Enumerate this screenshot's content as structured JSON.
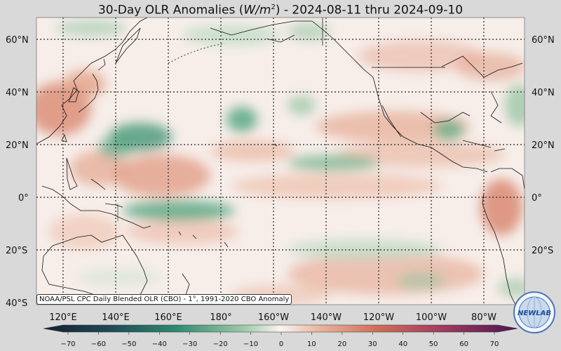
{
  "title": {
    "prefix": "30-Day OLR Anomalies (",
    "unit_base": "W/m",
    "unit_exp": "2",
    "suffix": ") - 2024-08-11 thru 2024-09-10"
  },
  "lat_labels": [
    "60°N",
    "40°N",
    "20°N",
    "0°",
    "20°S",
    "40°S"
  ],
  "lon_labels": [
    "120°E",
    "140°E",
    "160°E",
    "180°",
    "160°W",
    "140°W",
    "120°W",
    "100°W",
    "80°W"
  ],
  "credit": "NOAA/PSL CPC Daily Blended OLR (CBO) - 1°, 1991-2020 CBO Anomaly",
  "colorbar": {
    "ticks": [
      "−70",
      "−60",
      "−50",
      "−40",
      "−30",
      "−20",
      "−10",
      "0",
      "10",
      "20",
      "30",
      "40",
      "50",
      "60",
      "70"
    ],
    "colors": [
      "#1a2a3a",
      "#1e4a56",
      "#226a66",
      "#2f8a70",
      "#5aa884",
      "#95c4a2",
      "#cfe3d2",
      "#f7eeea",
      "#f1cdbd",
      "#e3a188",
      "#d3785c",
      "#c05a4e",
      "#a8405a",
      "#8a2c64",
      "#5e1a5a"
    ]
  },
  "logo": {
    "text": "NEWLAB",
    "icon": "globe-icon"
  },
  "anomaly_regions": [
    {
      "kind": "positive",
      "name": "japan-east-china"
    },
    {
      "kind": "positive",
      "name": "east-pacific-northern-band"
    },
    {
      "kind": "positive",
      "name": "south-america-north"
    },
    {
      "kind": "negative",
      "name": "west-pacific-20n"
    },
    {
      "kind": "negative",
      "name": "central-pacific-25n"
    },
    {
      "kind": "negative",
      "name": "spcz"
    },
    {
      "kind": "negative",
      "name": "itcz-east-pacific"
    },
    {
      "kind": "negative",
      "name": "gulf-of-mexico"
    }
  ]
}
